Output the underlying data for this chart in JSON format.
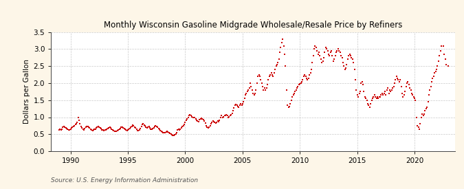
{
  "title": "Monthly Wisconsin Gasoline Midgrade Wholesale/Resale Price by Refiners",
  "ylabel": "Dollars per Gallon",
  "source": "Source: U.S. Energy Information Administration",
  "fig_background_color": "#fdf6e8",
  "plot_background_color": "#ffffff",
  "marker_color": "#cc0000",
  "grid_color": "#bbbbbb",
  "xlim": [
    1988.3,
    2023.5
  ],
  "ylim": [
    0.0,
    3.5
  ],
  "yticks": [
    0.0,
    0.5,
    1.0,
    1.5,
    2.0,
    2.5,
    3.0,
    3.5
  ],
  "xticks": [
    1990,
    1995,
    2000,
    2005,
    2010,
    2015,
    2020
  ],
  "data": [
    [
      1989.0,
      0.62
    ],
    [
      1989.08,
      0.64
    ],
    [
      1989.17,
      0.63
    ],
    [
      1989.25,
      0.65
    ],
    [
      1989.33,
      0.7
    ],
    [
      1989.42,
      0.72
    ],
    [
      1989.5,
      0.7
    ],
    [
      1989.58,
      0.69
    ],
    [
      1989.67,
      0.67
    ],
    [
      1989.75,
      0.65
    ],
    [
      1989.83,
      0.63
    ],
    [
      1989.92,
      0.62
    ],
    [
      1990.0,
      0.65
    ],
    [
      1990.08,
      0.68
    ],
    [
      1990.17,
      0.7
    ],
    [
      1990.25,
      0.72
    ],
    [
      1990.33,
      0.75
    ],
    [
      1990.42,
      0.78
    ],
    [
      1990.5,
      0.8
    ],
    [
      1990.58,
      0.85
    ],
    [
      1990.67,
      1.0
    ],
    [
      1990.75,
      0.9
    ],
    [
      1990.83,
      0.8
    ],
    [
      1990.92,
      0.72
    ],
    [
      1991.0,
      0.68
    ],
    [
      1991.08,
      0.65
    ],
    [
      1991.17,
      0.63
    ],
    [
      1991.25,
      0.67
    ],
    [
      1991.33,
      0.7
    ],
    [
      1991.42,
      0.73
    ],
    [
      1991.5,
      0.72
    ],
    [
      1991.58,
      0.7
    ],
    [
      1991.67,
      0.68
    ],
    [
      1991.75,
      0.65
    ],
    [
      1991.83,
      0.63
    ],
    [
      1991.92,
      0.61
    ],
    [
      1992.0,
      0.62
    ],
    [
      1992.08,
      0.64
    ],
    [
      1992.17,
      0.65
    ],
    [
      1992.25,
      0.68
    ],
    [
      1992.33,
      0.7
    ],
    [
      1992.42,
      0.72
    ],
    [
      1992.5,
      0.7
    ],
    [
      1992.58,
      0.68
    ],
    [
      1992.67,
      0.66
    ],
    [
      1992.75,
      0.63
    ],
    [
      1992.83,
      0.62
    ],
    [
      1992.92,
      0.61
    ],
    [
      1993.0,
      0.62
    ],
    [
      1993.08,
      0.63
    ],
    [
      1993.17,
      0.65
    ],
    [
      1993.25,
      0.67
    ],
    [
      1993.33,
      0.68
    ],
    [
      1993.42,
      0.7
    ],
    [
      1993.5,
      0.68
    ],
    [
      1993.58,
      0.65
    ],
    [
      1993.67,
      0.62
    ],
    [
      1993.75,
      0.6
    ],
    [
      1993.83,
      0.59
    ],
    [
      1993.92,
      0.58
    ],
    [
      1994.0,
      0.59
    ],
    [
      1994.08,
      0.6
    ],
    [
      1994.17,
      0.62
    ],
    [
      1994.25,
      0.65
    ],
    [
      1994.33,
      0.67
    ],
    [
      1994.42,
      0.7
    ],
    [
      1994.5,
      0.71
    ],
    [
      1994.58,
      0.69
    ],
    [
      1994.67,
      0.67
    ],
    [
      1994.75,
      0.64
    ],
    [
      1994.83,
      0.62
    ],
    [
      1994.92,
      0.61
    ],
    [
      1995.0,
      0.62
    ],
    [
      1995.08,
      0.64
    ],
    [
      1995.17,
      0.66
    ],
    [
      1995.25,
      0.7
    ],
    [
      1995.33,
      0.73
    ],
    [
      1995.42,
      0.76
    ],
    [
      1995.5,
      0.74
    ],
    [
      1995.58,
      0.71
    ],
    [
      1995.67,
      0.68
    ],
    [
      1995.75,
      0.64
    ],
    [
      1995.83,
      0.61
    ],
    [
      1995.92,
      0.6
    ],
    [
      1996.0,
      0.63
    ],
    [
      1996.08,
      0.67
    ],
    [
      1996.17,
      0.72
    ],
    [
      1996.25,
      0.78
    ],
    [
      1996.33,
      0.8
    ],
    [
      1996.42,
      0.77
    ],
    [
      1996.5,
      0.74
    ],
    [
      1996.58,
      0.7
    ],
    [
      1996.67,
      0.68
    ],
    [
      1996.75,
      0.7
    ],
    [
      1996.83,
      0.72
    ],
    [
      1996.92,
      0.68
    ],
    [
      1997.0,
      0.65
    ],
    [
      1997.08,
      0.64
    ],
    [
      1997.17,
      0.66
    ],
    [
      1997.25,
      0.68
    ],
    [
      1997.33,
      0.72
    ],
    [
      1997.42,
      0.74
    ],
    [
      1997.5,
      0.72
    ],
    [
      1997.58,
      0.7
    ],
    [
      1997.67,
      0.67
    ],
    [
      1997.75,
      0.64
    ],
    [
      1997.83,
      0.61
    ],
    [
      1997.92,
      0.59
    ],
    [
      1998.0,
      0.57
    ],
    [
      1998.08,
      0.55
    ],
    [
      1998.17,
      0.54
    ],
    [
      1998.25,
      0.55
    ],
    [
      1998.33,
      0.57
    ],
    [
      1998.42,
      0.58
    ],
    [
      1998.5,
      0.56
    ],
    [
      1998.58,
      0.54
    ],
    [
      1998.67,
      0.52
    ],
    [
      1998.75,
      0.5
    ],
    [
      1998.83,
      0.48
    ],
    [
      1998.92,
      0.46
    ],
    [
      1999.0,
      0.47
    ],
    [
      1999.08,
      0.48
    ],
    [
      1999.17,
      0.5
    ],
    [
      1999.25,
      0.55
    ],
    [
      1999.33,
      0.62
    ],
    [
      1999.42,
      0.65
    ],
    [
      1999.5,
      0.63
    ],
    [
      1999.58,
      0.65
    ],
    [
      1999.67,
      0.68
    ],
    [
      1999.75,
      0.72
    ],
    [
      1999.83,
      0.75
    ],
    [
      1999.92,
      0.78
    ],
    [
      2000.0,
      0.85
    ],
    [
      2000.08,
      0.9
    ],
    [
      2000.17,
      0.95
    ],
    [
      2000.25,
      1.0
    ],
    [
      2000.33,
      1.05
    ],
    [
      2000.42,
      1.08
    ],
    [
      2000.5,
      1.05
    ],
    [
      2000.58,
      1.02
    ],
    [
      2000.67,
      1.0
    ],
    [
      2000.75,
      0.98
    ],
    [
      2000.83,
      1.0
    ],
    [
      2000.92,
      0.95
    ],
    [
      2001.0,
      0.9
    ],
    [
      2001.08,
      0.88
    ],
    [
      2001.17,
      0.87
    ],
    [
      2001.25,
      0.92
    ],
    [
      2001.33,
      0.95
    ],
    [
      2001.42,
      0.97
    ],
    [
      2001.5,
      0.95
    ],
    [
      2001.58,
      0.92
    ],
    [
      2001.67,
      0.88
    ],
    [
      2001.75,
      0.82
    ],
    [
      2001.83,
      0.75
    ],
    [
      2001.92,
      0.7
    ],
    [
      2002.0,
      0.68
    ],
    [
      2002.08,
      0.7
    ],
    [
      2002.17,
      0.74
    ],
    [
      2002.25,
      0.8
    ],
    [
      2002.33,
      0.85
    ],
    [
      2002.42,
      0.88
    ],
    [
      2002.5,
      0.87
    ],
    [
      2002.58,
      0.85
    ],
    [
      2002.67,
      0.83
    ],
    [
      2002.75,
      0.85
    ],
    [
      2002.83,
      0.88
    ],
    [
      2002.92,
      0.87
    ],
    [
      2003.0,
      0.9
    ],
    [
      2003.08,
      0.98
    ],
    [
      2003.17,
      1.05
    ],
    [
      2003.25,
      1.0
    ],
    [
      2003.33,
      1.02
    ],
    [
      2003.42,
      1.05
    ],
    [
      2003.5,
      1.05
    ],
    [
      2003.58,
      1.08
    ],
    [
      2003.67,
      1.05
    ],
    [
      2003.75,
      1.0
    ],
    [
      2003.83,
      1.02
    ],
    [
      2003.92,
      1.05
    ],
    [
      2004.0,
      1.08
    ],
    [
      2004.08,
      1.12
    ],
    [
      2004.17,
      1.2
    ],
    [
      2004.25,
      1.28
    ],
    [
      2004.33,
      1.35
    ],
    [
      2004.42,
      1.38
    ],
    [
      2004.5,
      1.35
    ],
    [
      2004.58,
      1.32
    ],
    [
      2004.67,
      1.3
    ],
    [
      2004.75,
      1.35
    ],
    [
      2004.83,
      1.4
    ],
    [
      2004.92,
      1.35
    ],
    [
      2005.0,
      1.4
    ],
    [
      2005.08,
      1.45
    ],
    [
      2005.17,
      1.55
    ],
    [
      2005.25,
      1.65
    ],
    [
      2005.33,
      1.7
    ],
    [
      2005.42,
      1.75
    ],
    [
      2005.5,
      1.8
    ],
    [
      2005.58,
      1.85
    ],
    [
      2005.67,
      2.0
    ],
    [
      2005.75,
      1.9
    ],
    [
      2005.83,
      1.8
    ],
    [
      2005.92,
      1.7
    ],
    [
      2006.0,
      1.65
    ],
    [
      2006.08,
      1.7
    ],
    [
      2006.17,
      1.8
    ],
    [
      2006.25,
      2.0
    ],
    [
      2006.33,
      2.2
    ],
    [
      2006.42,
      2.25
    ],
    [
      2006.5,
      2.2
    ],
    [
      2006.58,
      2.1
    ],
    [
      2006.67,
      2.0
    ],
    [
      2006.75,
      1.9
    ],
    [
      2006.83,
      1.8
    ],
    [
      2006.92,
      1.85
    ],
    [
      2007.0,
      1.8
    ],
    [
      2007.08,
      1.85
    ],
    [
      2007.17,
      1.95
    ],
    [
      2007.25,
      2.1
    ],
    [
      2007.33,
      2.2
    ],
    [
      2007.42,
      2.25
    ],
    [
      2007.5,
      2.3
    ],
    [
      2007.58,
      2.25
    ],
    [
      2007.67,
      2.2
    ],
    [
      2007.75,
      2.3
    ],
    [
      2007.83,
      2.4
    ],
    [
      2007.92,
      2.5
    ],
    [
      2008.0,
      2.55
    ],
    [
      2008.08,
      2.6
    ],
    [
      2008.17,
      2.7
    ],
    [
      2008.25,
      2.9
    ],
    [
      2008.33,
      3.05
    ],
    [
      2008.42,
      3.2
    ],
    [
      2008.5,
      3.3
    ],
    [
      2008.58,
      3.1
    ],
    [
      2008.67,
      2.85
    ],
    [
      2008.75,
      2.5
    ],
    [
      2008.83,
      1.8
    ],
    [
      2008.92,
      1.35
    ],
    [
      2009.0,
      1.3
    ],
    [
      2009.08,
      1.32
    ],
    [
      2009.17,
      1.4
    ],
    [
      2009.25,
      1.5
    ],
    [
      2009.33,
      1.6
    ],
    [
      2009.42,
      1.65
    ],
    [
      2009.5,
      1.7
    ],
    [
      2009.58,
      1.75
    ],
    [
      2009.67,
      1.8
    ],
    [
      2009.75,
      1.85
    ],
    [
      2009.83,
      1.9
    ],
    [
      2009.92,
      1.95
    ],
    [
      2010.0,
      1.98
    ],
    [
      2010.08,
      2.0
    ],
    [
      2010.17,
      2.05
    ],
    [
      2010.25,
      2.1
    ],
    [
      2010.33,
      2.2
    ],
    [
      2010.42,
      2.25
    ],
    [
      2010.5,
      2.2
    ],
    [
      2010.58,
      2.15
    ],
    [
      2010.67,
      2.1
    ],
    [
      2010.75,
      2.15
    ],
    [
      2010.83,
      2.25
    ],
    [
      2010.92,
      2.3
    ],
    [
      2011.0,
      2.4
    ],
    [
      2011.08,
      2.6
    ],
    [
      2011.17,
      2.8
    ],
    [
      2011.25,
      3.0
    ],
    [
      2011.33,
      3.1
    ],
    [
      2011.42,
      3.05
    ],
    [
      2011.5,
      2.95
    ],
    [
      2011.58,
      2.85
    ],
    [
      2011.67,
      2.9
    ],
    [
      2011.75,
      2.8
    ],
    [
      2011.83,
      2.7
    ],
    [
      2011.92,
      2.6
    ],
    [
      2012.0,
      2.65
    ],
    [
      2012.08,
      2.75
    ],
    [
      2012.17,
      2.9
    ],
    [
      2012.25,
      3.05
    ],
    [
      2012.33,
      3.0
    ],
    [
      2012.42,
      2.95
    ],
    [
      2012.5,
      2.85
    ],
    [
      2012.58,
      2.8
    ],
    [
      2012.67,
      2.9
    ],
    [
      2012.75,
      2.95
    ],
    [
      2012.83,
      2.8
    ],
    [
      2012.92,
      2.65
    ],
    [
      2013.0,
      2.7
    ],
    [
      2013.08,
      2.8
    ],
    [
      2013.17,
      2.9
    ],
    [
      2013.25,
      2.95
    ],
    [
      2013.33,
      3.0
    ],
    [
      2013.42,
      2.95
    ],
    [
      2013.5,
      2.9
    ],
    [
      2013.58,
      2.8
    ],
    [
      2013.67,
      2.75
    ],
    [
      2013.75,
      2.6
    ],
    [
      2013.83,
      2.5
    ],
    [
      2013.92,
      2.4
    ],
    [
      2014.0,
      2.45
    ],
    [
      2014.08,
      2.55
    ],
    [
      2014.17,
      2.7
    ],
    [
      2014.25,
      2.8
    ],
    [
      2014.33,
      2.85
    ],
    [
      2014.42,
      2.8
    ],
    [
      2014.5,
      2.75
    ],
    [
      2014.58,
      2.7
    ],
    [
      2014.67,
      2.6
    ],
    [
      2014.75,
      2.4
    ],
    [
      2014.83,
      2.1
    ],
    [
      2014.92,
      1.8
    ],
    [
      2015.0,
      1.65
    ],
    [
      2015.08,
      1.6
    ],
    [
      2015.17,
      1.7
    ],
    [
      2015.25,
      1.75
    ],
    [
      2015.33,
      2.0
    ],
    [
      2015.42,
      2.05
    ],
    [
      2015.5,
      1.95
    ],
    [
      2015.58,
      1.75
    ],
    [
      2015.67,
      1.6
    ],
    [
      2015.75,
      1.55
    ],
    [
      2015.83,
      1.5
    ],
    [
      2015.92,
      1.4
    ],
    [
      2016.0,
      1.35
    ],
    [
      2016.08,
      1.3
    ],
    [
      2016.17,
      1.4
    ],
    [
      2016.25,
      1.5
    ],
    [
      2016.33,
      1.55
    ],
    [
      2016.42,
      1.6
    ],
    [
      2016.5,
      1.65
    ],
    [
      2016.58,
      1.6
    ],
    [
      2016.67,
      1.55
    ],
    [
      2016.75,
      1.6
    ],
    [
      2016.83,
      1.55
    ],
    [
      2016.92,
      1.6
    ],
    [
      2017.0,
      1.6
    ],
    [
      2017.08,
      1.65
    ],
    [
      2017.17,
      1.7
    ],
    [
      2017.25,
      1.65
    ],
    [
      2017.33,
      1.7
    ],
    [
      2017.42,
      1.75
    ],
    [
      2017.5,
      1.65
    ],
    [
      2017.58,
      1.8
    ],
    [
      2017.67,
      1.85
    ],
    [
      2017.75,
      1.7
    ],
    [
      2017.83,
      1.8
    ],
    [
      2017.92,
      1.75
    ],
    [
      2018.0,
      1.8
    ],
    [
      2018.08,
      1.85
    ],
    [
      2018.17,
      1.9
    ],
    [
      2018.25,
      2.0
    ],
    [
      2018.33,
      2.1
    ],
    [
      2018.42,
      2.2
    ],
    [
      2018.5,
      2.15
    ],
    [
      2018.58,
      2.1
    ],
    [
      2018.67,
      2.05
    ],
    [
      2018.75,
      2.1
    ],
    [
      2018.83,
      1.9
    ],
    [
      2018.92,
      1.7
    ],
    [
      2019.0,
      1.6
    ],
    [
      2019.08,
      1.65
    ],
    [
      2019.17,
      1.75
    ],
    [
      2019.25,
      1.9
    ],
    [
      2019.33,
      2.0
    ],
    [
      2019.42,
      2.05
    ],
    [
      2019.5,
      1.95
    ],
    [
      2019.58,
      1.85
    ],
    [
      2019.67,
      1.8
    ],
    [
      2019.75,
      1.7
    ],
    [
      2019.83,
      1.65
    ],
    [
      2019.92,
      1.6
    ],
    [
      2020.0,
      1.55
    ],
    [
      2020.08,
      1.5
    ],
    [
      2020.17,
      1.0
    ],
    [
      2020.25,
      0.75
    ],
    [
      2020.33,
      0.7
    ],
    [
      2020.42,
      0.65
    ],
    [
      2020.5,
      0.8
    ],
    [
      2020.58,
      1.0
    ],
    [
      2020.67,
      1.1
    ],
    [
      2020.75,
      1.05
    ],
    [
      2020.83,
      1.1
    ],
    [
      2020.92,
      1.2
    ],
    [
      2021.0,
      1.25
    ],
    [
      2021.08,
      1.3
    ],
    [
      2021.17,
      1.45
    ],
    [
      2021.25,
      1.65
    ],
    [
      2021.33,
      1.8
    ],
    [
      2021.42,
      1.9
    ],
    [
      2021.5,
      2.05
    ],
    [
      2021.58,
      2.15
    ],
    [
      2021.67,
      2.2
    ],
    [
      2021.75,
      2.3
    ],
    [
      2021.83,
      2.35
    ],
    [
      2021.92,
      2.4
    ],
    [
      2022.0,
      2.5
    ],
    [
      2022.08,
      2.65
    ],
    [
      2022.17,
      2.8
    ],
    [
      2022.25,
      2.95
    ],
    [
      2022.33,
      3.1
    ],
    [
      2022.5,
      3.1
    ],
    [
      2022.58,
      2.85
    ],
    [
      2022.67,
      2.7
    ],
    [
      2022.75,
      2.55
    ],
    [
      2022.92,
      2.5
    ]
  ]
}
